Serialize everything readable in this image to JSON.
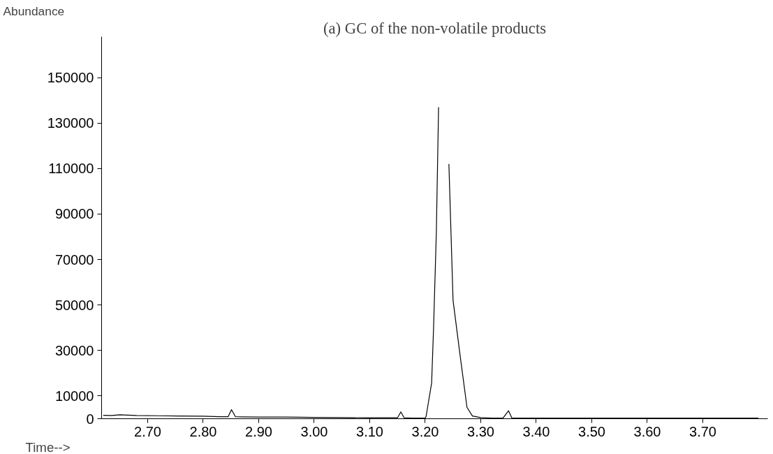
{
  "chart_data": {
    "type": "line",
    "title": "(a) GC of the non-volatile products",
    "xlabel": "Time-->",
    "ylabel": "Abundance",
    "x": [
      2.62,
      2.635,
      2.65,
      2.68,
      2.72,
      2.76,
      2.8,
      2.83,
      2.845,
      2.851,
      2.858,
      2.87,
      2.9,
      2.95,
      3.0,
      3.05,
      3.1,
      3.14,
      3.15,
      3.156,
      3.162,
      3.175,
      3.2,
      3.2015,
      3.2115,
      3.215,
      3.22,
      3.224,
      3.2301,
      3.234,
      3.2376,
      3.2426,
      3.2501,
      3.2627,
      3.2752,
      3.285,
      3.3,
      3.32,
      3.34,
      3.35,
      3.356,
      3.37,
      3.42,
      3.5,
      3.6,
      3.7,
      3.8
    ],
    "series": [
      {
        "color": "#000000",
        "values": [
          1500,
          1400,
          1700,
          1400,
          1300,
          1200,
          1100,
          900,
          900,
          4000,
          900,
          800,
          700,
          700,
          600,
          500,
          400,
          400,
          400,
          3000,
          400,
          300,
          300,
          1000,
          15700,
          40000,
          82000,
          137000,
          null,
          null,
          null,
          112000,
          52000,
          28000,
          5000,
          1200,
          500,
          300,
          300,
          3500,
          300,
          300,
          300,
          300,
          300,
          300,
          300
        ]
      }
    ],
    "xlim": [
      2.617,
      3.817
    ],
    "ylim": [
      0,
      168000
    ],
    "xticks": [
      {
        "value": 2.7,
        "label": "2.70"
      },
      {
        "value": 2.8,
        "label": "2.80"
      },
      {
        "value": 2.9,
        "label": "2.90"
      },
      {
        "value": 3.0,
        "label": "3.00"
      },
      {
        "value": 3.1,
        "label": "3.10"
      },
      {
        "value": 3.2,
        "label": "3.20"
      },
      {
        "value": 3.3,
        "label": "3.30"
      },
      {
        "value": 3.4,
        "label": "3.40"
      },
      {
        "value": 3.5,
        "label": "3.50"
      },
      {
        "value": 3.6,
        "label": "3.60"
      },
      {
        "value": 3.7,
        "label": "3.70"
      }
    ],
    "yticks": [
      0,
      10000,
      30000,
      50000,
      70000,
      90000,
      110000,
      130000,
      150000
    ],
    "grid": false,
    "marker": "none",
    "line_style": "solid"
  }
}
